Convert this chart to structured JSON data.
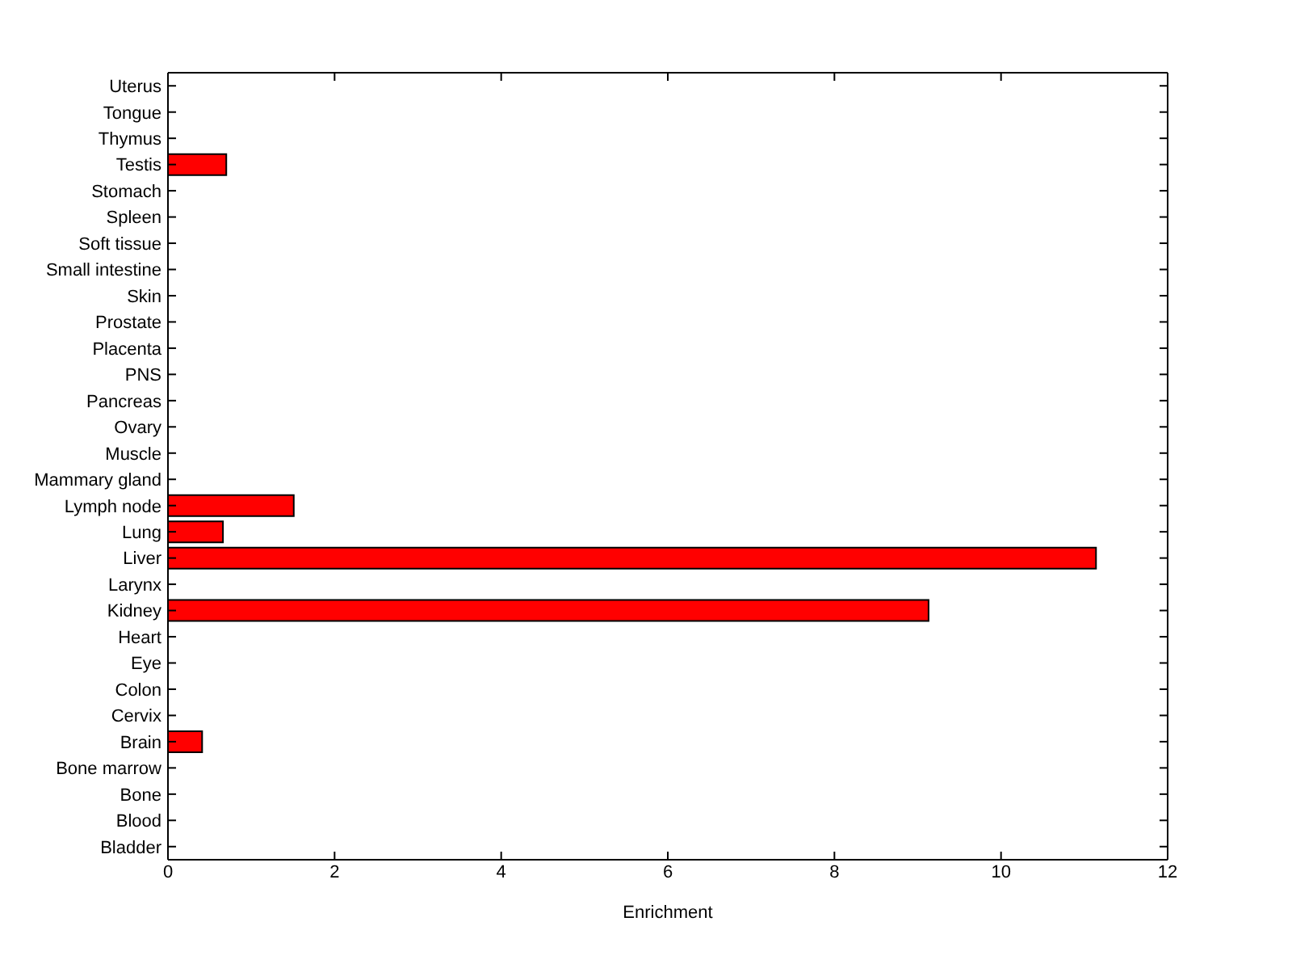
{
  "chart_data": {
    "type": "bar",
    "orientation": "horizontal",
    "xlabel": "Enrichment",
    "categories": [
      "Uterus",
      "Tongue",
      "Thymus",
      "Testis",
      "Stomach",
      "Spleen",
      "Soft tissue",
      "Small intestine",
      "Skin",
      "Prostate",
      "Placenta",
      "PNS",
      "Pancreas",
      "Ovary",
      "Muscle",
      "Mammary gland",
      "Lymph node",
      "Lung",
      "Liver",
      "Larynx",
      "Kidney",
      "Heart",
      "Eye",
      "Colon",
      "Cervix",
      "Brain",
      "Bone marrow",
      "Bone",
      "Blood",
      "Bladder"
    ],
    "values": [
      0,
      0,
      0,
      0.7,
      0,
      0,
      0,
      0,
      0,
      0,
      0,
      0,
      0,
      0,
      0,
      0,
      1.51,
      0.66,
      11.14,
      0,
      9.13,
      0,
      0,
      0,
      0,
      0.41,
      0,
      0,
      0,
      0
    ],
    "color": "#ff0000",
    "xlim": [
      0,
      12
    ],
    "xticks": [
      0,
      2,
      4,
      6,
      8,
      10,
      12
    ]
  }
}
